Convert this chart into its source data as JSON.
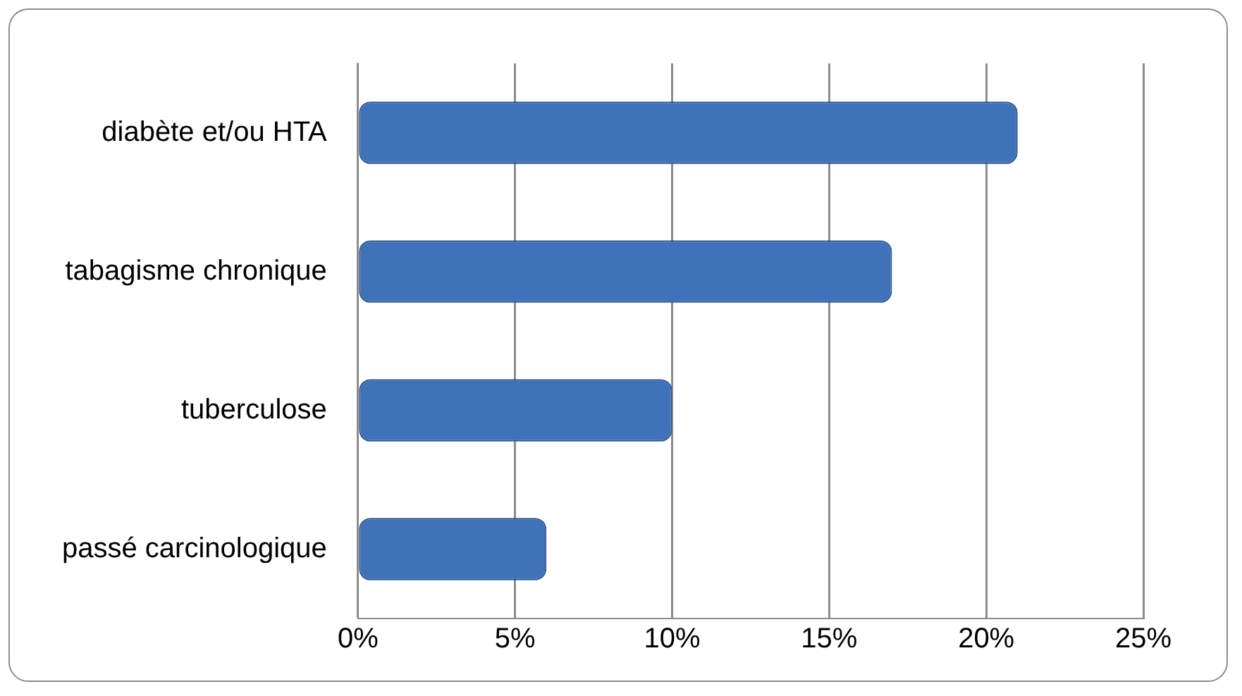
{
  "chart_data": {
    "type": "bar",
    "orientation": "horizontal",
    "categories": [
      "diabète et/ou HTA",
      "tabagisme chronique",
      "tuberculose",
      "passé carcinologique"
    ],
    "values": [
      21,
      17,
      10,
      6
    ],
    "color": "#3f72b8",
    "xlim": [
      0,
      25
    ],
    "xticks": [
      {
        "value": 0,
        "label": "0%"
      },
      {
        "value": 5,
        "label": "5%"
      },
      {
        "value": 10,
        "label": "10%"
      },
      {
        "value": 15,
        "label": "15%"
      },
      {
        "value": 20,
        "label": "20%"
      },
      {
        "value": 25,
        "label": "25%"
      }
    ],
    "grid": "x",
    "legend": false
  }
}
